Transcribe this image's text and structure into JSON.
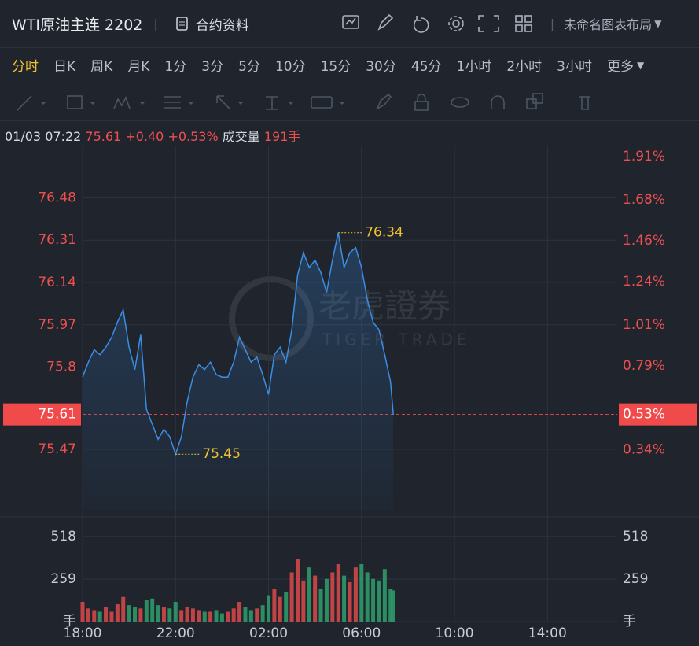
{
  "header": {
    "title": "WTI原油主连 2202",
    "doc_button": "合约资料",
    "layout_name": "未命名图表布局"
  },
  "tabs": [
    "分时",
    "日K",
    "周K",
    "月K",
    "1分",
    "3分",
    "5分",
    "10分",
    "15分",
    "30分",
    "45分",
    "1小时",
    "2小时",
    "3小时",
    "更多"
  ],
  "info": {
    "time": "01/03 07:22",
    "price": "75.61",
    "change": "+0.40",
    "percent": "+0.53%",
    "volume_label": "成交量",
    "volume": "191手"
  },
  "watermark": {
    "cn": "老虎證券",
    "en": "TIGER TRADE"
  },
  "chart_data": {
    "type": "line",
    "x": [
      "18:00",
      "18:15",
      "18:30",
      "18:45",
      "19:00",
      "19:15",
      "19:30",
      "19:45",
      "20:00",
      "20:15",
      "20:30",
      "20:45",
      "21:00",
      "21:15",
      "21:30",
      "21:45",
      "22:00",
      "22:15",
      "22:30",
      "22:45",
      "23:00",
      "23:15",
      "23:30",
      "23:45",
      "00:00",
      "00:15",
      "00:30",
      "00:45",
      "01:00",
      "01:15",
      "01:30",
      "01:45",
      "02:00",
      "02:15",
      "02:30",
      "02:45",
      "03:00",
      "03:15",
      "03:30",
      "03:45",
      "04:00",
      "04:15",
      "04:30",
      "04:45",
      "05:00",
      "05:15",
      "05:30",
      "05:45",
      "06:00",
      "06:15",
      "06:30",
      "06:45",
      "07:00",
      "07:15",
      "07:22"
    ],
    "series": [
      {
        "name": "价格",
        "color": "#3a8ee6",
        "values": [
          75.76,
          75.82,
          75.87,
          75.85,
          75.88,
          75.92,
          75.98,
          76.03,
          75.88,
          75.79,
          75.93,
          75.63,
          75.57,
          75.51,
          75.55,
          75.52,
          75.45,
          75.52,
          75.66,
          75.76,
          75.81,
          75.79,
          75.82,
          75.77,
          75.76,
          75.76,
          75.82,
          75.92,
          75.87,
          75.82,
          75.84,
          75.77,
          75.69,
          75.85,
          75.88,
          75.82,
          75.95,
          76.17,
          76.26,
          76.2,
          76.23,
          76.18,
          76.1,
          76.23,
          76.34,
          76.2,
          76.26,
          76.28,
          76.2,
          76.07,
          75.98,
          75.95,
          75.85,
          75.74,
          75.61
        ]
      },
      {
        "name": "成交量",
        "axis": "volume",
        "values": [
          120,
          80,
          70,
          60,
          90,
          60,
          110,
          150,
          100,
          90,
          80,
          130,
          140,
          100,
          90,
          80,
          120,
          70,
          90,
          80,
          70,
          60,
          60,
          70,
          50,
          60,
          80,
          120,
          90,
          70,
          80,
          100,
          160,
          200,
          150,
          180,
          300,
          380,
          250,
          330,
          280,
          200,
          260,
          300,
          350,
          280,
          240,
          330,
          350,
          300,
          260,
          250,
          320,
          200,
          190
        ]
      }
    ],
    "xlim": [
      "18:00",
      "17:00"
    ],
    "xticks": [
      "18:00",
      "22:00",
      "02:00",
      "06:00",
      "10:00",
      "14:00"
    ],
    "ylim": [
      75.22,
      76.69
    ],
    "yticks": [
      76.48,
      76.31,
      76.14,
      75.97,
      75.8,
      75.61,
      75.47
    ],
    "y2lim": [
      0.01,
      1.97
    ],
    "y2ticks": [
      {
        "value": 1.91,
        "label": "1.91%"
      },
      {
        "value": 1.68,
        "label": "1.68%"
      },
      {
        "value": 1.46,
        "label": "1.46%"
      },
      {
        "value": 1.24,
        "label": "1.24%"
      },
      {
        "value": 1.01,
        "label": "1.01%"
      },
      {
        "value": 0.79,
        "label": "0.79%"
      },
      {
        "value": 0.53,
        "label": "0.53%"
      },
      {
        "value": 0.34,
        "label": "0.34%"
      }
    ],
    "volume_lim": [
      0,
      623
    ],
    "volume_ticks": [
      {
        "value": 0,
        "label": "手"
      },
      259,
      518
    ],
    "annotations": [
      {
        "x": "05:00",
        "value": 76.34
      },
      {
        "x": "22:00",
        "value": 75.45
      }
    ],
    "grid": true,
    "up_color": "#e84b4b",
    "down_color": "#2fa870"
  }
}
